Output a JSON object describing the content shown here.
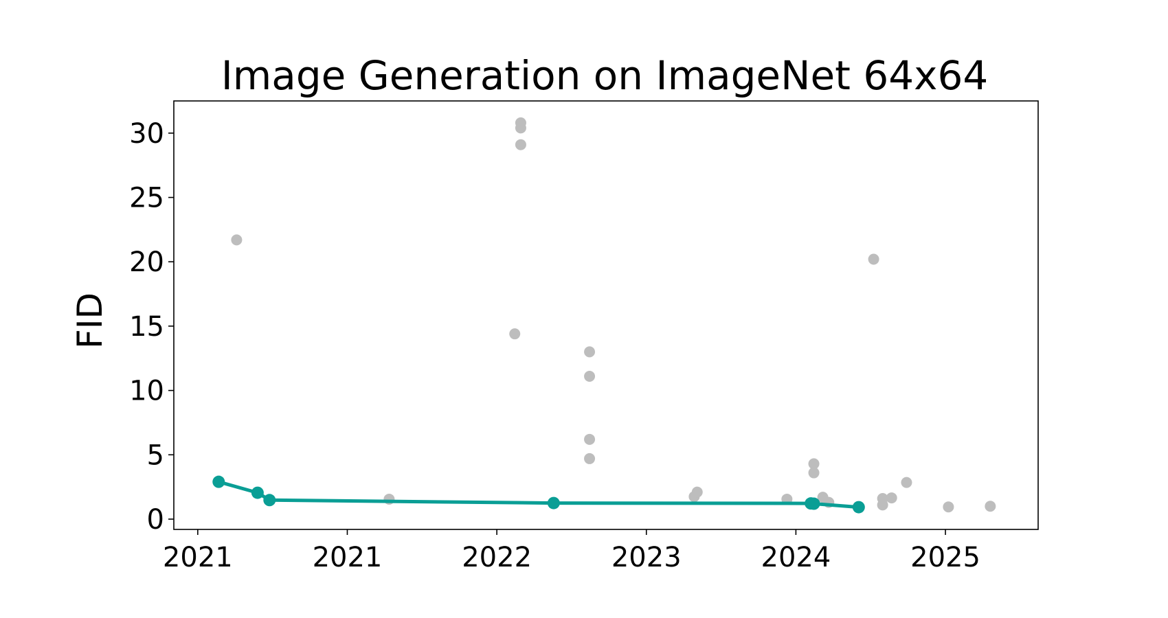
{
  "chart_data": {
    "type": "scatter",
    "title": "Image Generation on ImageNet 64x64",
    "xlabel": "",
    "ylabel": "FID",
    "x_tick_labels": [
      "2021",
      "2021",
      "2022",
      "2023",
      "2024",
      "2025"
    ],
    "x_tick_values": [
      2020.5,
      2021.0,
      2021.5,
      2022.0,
      2022.5,
      2023.0
    ],
    "y_ticks": [
      0,
      5,
      10,
      15,
      20,
      25,
      30
    ],
    "xlim": [
      2020.42,
      2023.31
    ],
    "ylim": [
      -0.8,
      32.5
    ],
    "grid": false,
    "colors": {
      "frontier": "#0a9e95",
      "other": "#bdbdbd"
    },
    "series": [
      {
        "role": "other",
        "points": [
          [
            2020.63,
            21.7
          ],
          [
            2021.14,
            1.55
          ],
          [
            2021.56,
            14.4
          ],
          [
            2021.58,
            30.8
          ],
          [
            2021.58,
            30.4
          ],
          [
            2021.58,
            29.1
          ],
          [
            2021.81,
            13.0
          ],
          [
            2021.81,
            11.1
          ],
          [
            2021.81,
            6.2
          ],
          [
            2021.81,
            4.7
          ],
          [
            2022.16,
            1.75
          ],
          [
            2022.17,
            2.1
          ],
          [
            2022.47,
            1.55
          ],
          [
            2022.56,
            4.3
          ],
          [
            2022.56,
            3.6
          ],
          [
            2022.59,
            1.7
          ],
          [
            2022.61,
            1.3
          ],
          [
            2022.76,
            20.2
          ],
          [
            2022.79,
            1.6
          ],
          [
            2022.79,
            1.1
          ],
          [
            2022.82,
            1.65
          ],
          [
            2022.87,
            2.85
          ],
          [
            2023.01,
            0.95
          ],
          [
            2023.15,
            1.0
          ],
          [
            2022.55,
            1.25
          ]
        ]
      },
      {
        "role": "frontier",
        "points": [
          [
            2020.57,
            2.9
          ],
          [
            2020.7,
            2.05
          ],
          [
            2020.74,
            1.48
          ],
          [
            2021.69,
            1.25
          ],
          [
            2022.55,
            1.22
          ],
          [
            2022.56,
            1.2
          ],
          [
            2022.71,
            0.93
          ]
        ]
      }
    ]
  }
}
